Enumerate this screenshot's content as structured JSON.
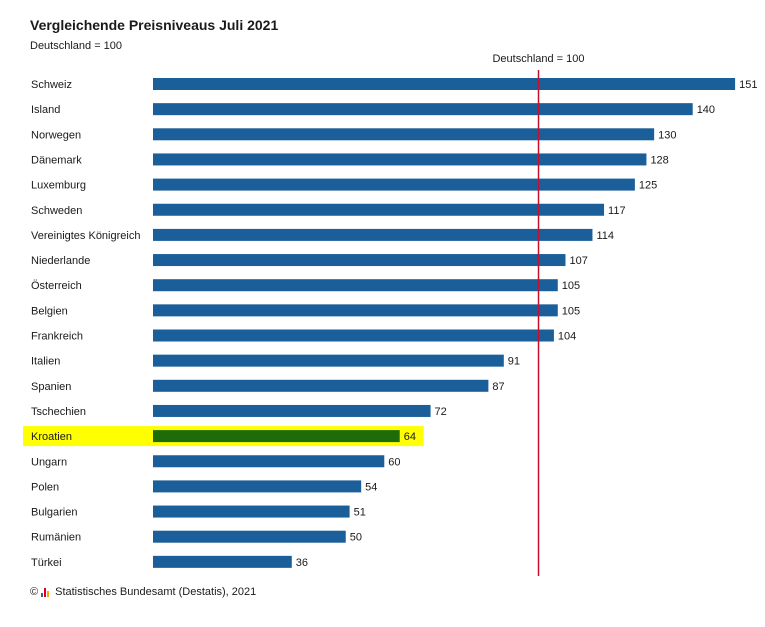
{
  "chart_data": {
    "type": "bar",
    "orientation": "horizontal",
    "title": "Vergleichende Preisniveaus Juli 2021",
    "subtitle": "Deutschland = 100",
    "reference_line": {
      "value": 100,
      "label": "Deutschland = 100",
      "color": "#c8102e"
    },
    "categories": [
      "Schweiz",
      "Island",
      "Norwegen",
      "Dänemark",
      "Luxemburg",
      "Schweden",
      "Vereinigtes Königreich",
      "Niederlande",
      "Österreich",
      "Belgien",
      "Frankreich",
      "Italien",
      "Spanien",
      "Tschechien",
      "Kroatien",
      "Ungarn",
      "Polen",
      "Bulgarien",
      "Rumänien",
      "Türkei"
    ],
    "values": [
      151,
      140,
      130,
      128,
      125,
      117,
      114,
      107,
      105,
      105,
      104,
      91,
      87,
      72,
      64,
      60,
      54,
      51,
      50,
      36
    ],
    "highlight": {
      "category": "Kroatien",
      "bar_color": "#1e6b0a",
      "background": "#ffff00"
    },
    "bar_color": "#1a5e9a",
    "grid": false
  },
  "footer": {
    "copyright_symbol": "©",
    "text": "Statistisches Bundesamt (Destatis), 2021",
    "logo_icon": "destatis-logo-icon"
  }
}
